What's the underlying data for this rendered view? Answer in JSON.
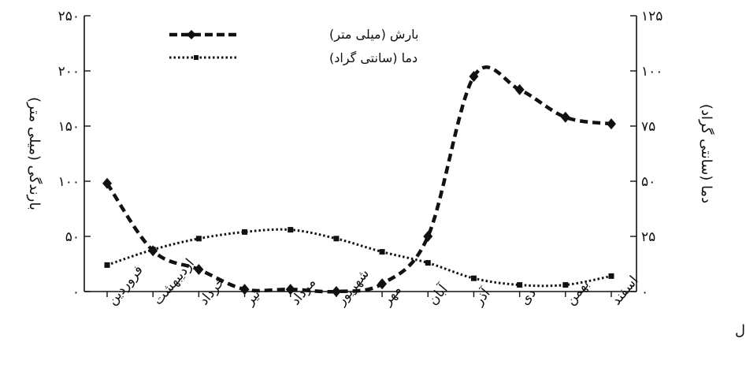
{
  "chart_data": {
    "type": "line",
    "xlabel": "ماههای سال",
    "ylabel_left": "بارندگی (میلی متر)",
    "ylabel_right": "دما (سانتی گراد)",
    "ylim_left": [
      0,
      250
    ],
    "ylim_right": [
      0,
      125
    ],
    "yticks_left": [
      {
        "value": 0,
        "label": "۰"
      },
      {
        "value": 50,
        "label": "۵۰"
      },
      {
        "value": 100,
        "label": "۱۰۰"
      },
      {
        "value": 150,
        "label": "۱۵۰"
      },
      {
        "value": 200,
        "label": "۲۰۰"
      },
      {
        "value": 250,
        "label": "۲۵۰"
      }
    ],
    "yticks_right": [
      {
        "value": 0,
        "label": "۰"
      },
      {
        "value": 25,
        "label": "۲۵"
      },
      {
        "value": 50,
        "label": "۵۰"
      },
      {
        "value": 75,
        "label": "۷۵"
      },
      {
        "value": 100,
        "label": "۱۰۰"
      },
      {
        "value": 125,
        "label": "۱۲۵"
      }
    ],
    "categories": [
      "فروردین",
      "اردیبهشت",
      "خرداد",
      "تیر",
      "مرداد",
      "شهریور",
      "مهر",
      "آبان",
      "آذر",
      "دی",
      "بهمن",
      "اسفند"
    ],
    "grid": false,
    "legend_position": "top-center",
    "series": [
      {
        "name": "بارش (میلی متر)",
        "axis": "left",
        "style": "dashed",
        "marker": "diamond",
        "values": [
          98,
          37,
          20,
          2,
          2,
          0,
          7,
          50,
          195,
          183,
          158,
          152
        ]
      },
      {
        "name": "دما (سانتی گراد)",
        "axis": "right",
        "style": "dotted",
        "marker": "square",
        "values": [
          12,
          19,
          24,
          27,
          28,
          24,
          18,
          13,
          6,
          3,
          3,
          7
        ]
      }
    ]
  }
}
